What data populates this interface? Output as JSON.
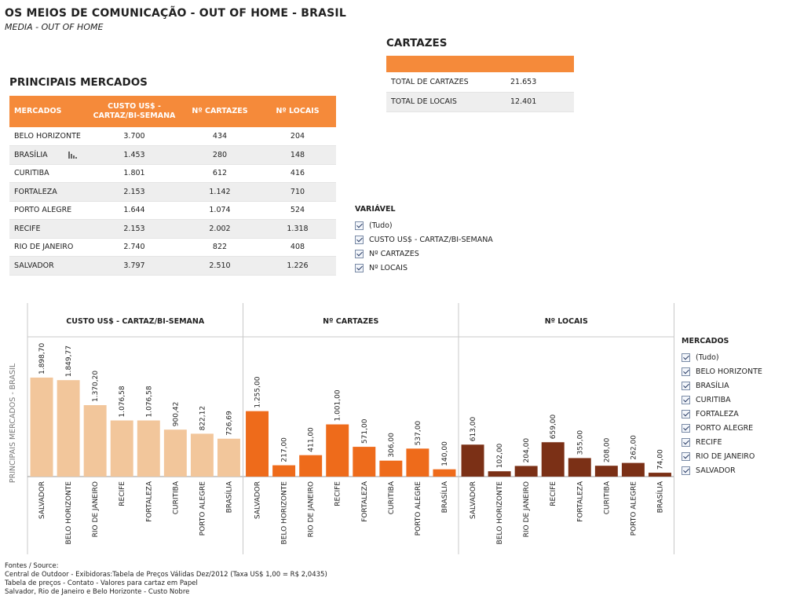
{
  "header": {
    "title": "OS MEIOS DE COMUNICAÇÃO - OUT OF HOME - BRASIL",
    "subtitle": "MEDIA - OUT OF HOME"
  },
  "markets_table": {
    "title": "PRINCIPAIS MERCADOS",
    "columns": [
      "MERCADOS",
      "CUSTO US$ - CARTAZ/BI-SEMANA",
      "Nº CARTAZES",
      "Nº LOCAIS"
    ],
    "rows": [
      [
        "BELO HORIZONTE",
        "3.700",
        "434",
        "204"
      ],
      [
        "BRASÍLIA",
        "1.453",
        "280",
        "148"
      ],
      [
        "CURITIBA",
        "1.801",
        "612",
        "416"
      ],
      [
        "FORTALEZA",
        "2.153",
        "1.142",
        "710"
      ],
      [
        "PORTO ALEGRE",
        "1.644",
        "1.074",
        "524"
      ],
      [
        "RECIFE",
        "2.153",
        "2.002",
        "1.318"
      ],
      [
        "RIO DE JANEIRO",
        "2.740",
        "822",
        "408"
      ],
      [
        "SALVADOR",
        "3.797",
        "2.510",
        "1.226"
      ]
    ]
  },
  "cartazes": {
    "title": "CARTAZES",
    "rows": [
      {
        "label": "TOTAL DE CARTAZES",
        "value": "21.653"
      },
      {
        "label": "TOTAL DE LOCAIS",
        "value": "12.401"
      }
    ]
  },
  "variavel_filter": {
    "title": "VARIÁVEL",
    "items": [
      "(Tudo)",
      "CUSTO US$ - CARTAZ/BI-SEMANA",
      "Nº CARTAZES",
      "Nº LOCAIS"
    ]
  },
  "mercados_filter": {
    "title": "MERCADOS",
    "items": [
      "(Tudo)",
      "BELO HORIZONTE",
      "BRASÍLIA",
      "CURITIBA",
      "FORTALEZA",
      "PORTO ALEGRE",
      "RECIFE",
      "RIO DE JANEIRO",
      "SALVADOR"
    ]
  },
  "chart_data": {
    "type": "bar",
    "ylabel": "PRINCIPAIS MERCADOS - BRASIL",
    "panels": [
      {
        "title": "CUSTO US$ - CARTAZ/BI-SEMANA",
        "color": "#f2c69b",
        "categories": [
          "SALVADOR",
          "BELO HORIZONTE",
          "RIO DE JANEIRO",
          "RECIFE",
          "FORTALEZA",
          "CURITIBA",
          "PORTO ALEGRE",
          "BRASÍLIA"
        ],
        "values": [
          1898.7,
          1849.77,
          1370.2,
          1076.58,
          1076.58,
          900.42,
          822.12,
          726.69
        ],
        "labels": [
          "1.898,70",
          "1.849,77",
          "1.370,20",
          "1.076,58",
          "1.076,58",
          "900,42",
          "822,12",
          "726,69"
        ],
        "ymax": 2650
      },
      {
        "title": "Nº CARTAZES",
        "color": "#ee6b1b",
        "categories": [
          "SALVADOR",
          "BELO HORIZONTE",
          "RIO DE JANEIRO",
          "RECIFE",
          "FORTALEZA",
          "CURITIBA",
          "PORTO ALEGRE",
          "BRASÍLIA"
        ],
        "values": [
          1255,
          217,
          411,
          1001,
          571,
          306,
          537,
          140
        ],
        "labels": [
          "1.255,00",
          "217,00",
          "411,00",
          "1.001,00",
          "571,00",
          "306,00",
          "537,00",
          "140,00"
        ],
        "ymax": 2650
      },
      {
        "title": "Nº LOCAIS",
        "color": "#7b3016",
        "categories": [
          "SALVADOR",
          "BELO HORIZONTE",
          "RIO DE JANEIRO",
          "RECIFE",
          "FORTALEZA",
          "CURITIBA",
          "PORTO ALEGRE",
          "BRASÍLIA"
        ],
        "values": [
          613,
          102,
          204,
          659,
          355,
          208,
          262,
          74
        ],
        "labels": [
          "613,00",
          "102,00",
          "204,00",
          "659,00",
          "355,00",
          "208,00",
          "262,00",
          "74,00"
        ],
        "ymax": 2650
      }
    ]
  },
  "footer": {
    "lines": [
      "Fontes / Source:",
      "Central de Outdoor - Exibidoras:Tabela de Preços Válidas Dez/2012 (Taxa US$ 1,00 = R$ 2,0435)",
      "Tabela de preços - Contato - Valores para cartaz em Papel",
      "Salvador, Rio de Janeiro e Belo Horizonte - Custo Nobre"
    ]
  }
}
